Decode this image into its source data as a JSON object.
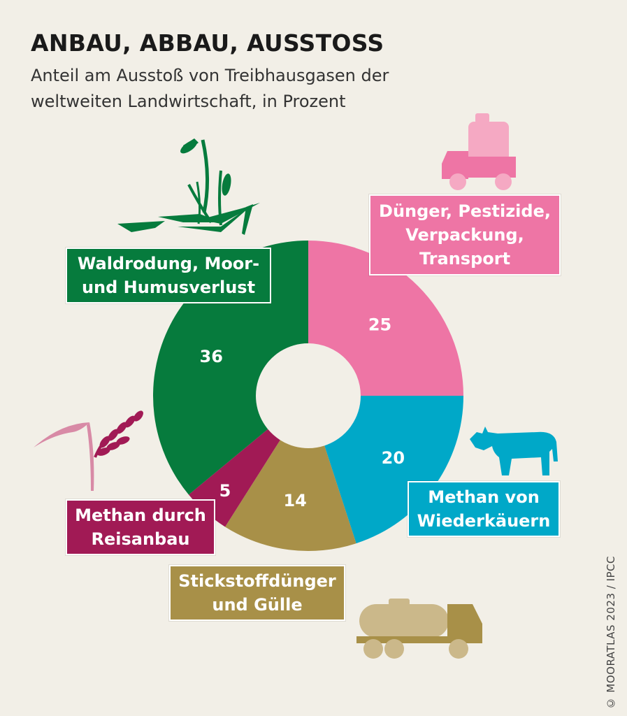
{
  "header": {
    "title": "ANBAU, ABBAU, AUSSTOSS",
    "subtitle": "Anteil am Ausstoß von Treibhausgasen der weltweiten Landwirtschaft, in Prozent"
  },
  "chart_data": {
    "type": "pie",
    "title": "ANBAU, ABBAU, AUSSTOSS",
    "subtitle": "Anteil am Ausstoß von Treibhausgasen der weltweiten Landwirtschaft, in Prozent",
    "slices": [
      {
        "label": "Dünger, Pestizide, Verpackung, Transport",
        "label_lines": [
          "Dünger, Pestizide,",
          "Verpackung,",
          "Transport"
        ],
        "value": 25,
        "color": "#ee75a5",
        "label_box_color": "#ee75a5"
      },
      {
        "label": "Methan von Wiederkäuern",
        "label_lines": [
          "Methan von",
          "Wiederkäuern"
        ],
        "value": 20,
        "color": "#00a8c8",
        "label_box_color": "#00a8c8"
      },
      {
        "label": "Stickstoffdünger und Gülle",
        "label_lines": [
          "Stickstoffdünger",
          "und Gülle"
        ],
        "value": 14,
        "color": "#a89048",
        "label_box_color": "#a89048"
      },
      {
        "label": "Methan durch Reisanbau",
        "label_lines": [
          "Methan durch",
          "Reisanbau"
        ],
        "value": 5,
        "color": "#a11a55",
        "label_box_color": "#a11a55"
      },
      {
        "label": "Waldrodung, Moor- und Humusverlust",
        "label_lines": [
          "Waldrodung, Moor-",
          "und Humusverlust"
        ],
        "value": 36,
        "color": "#067b3d",
        "label_box_color": "#067b3d"
      }
    ],
    "donut": true,
    "start": "top, clockwise"
  },
  "credit": "© MOORATLAS 2023 / IPCC",
  "icons": [
    "truck-canister-icon",
    "cow-icon",
    "tanker-truck-icon",
    "rice-plant-icon",
    "grass-plant-icon"
  ]
}
